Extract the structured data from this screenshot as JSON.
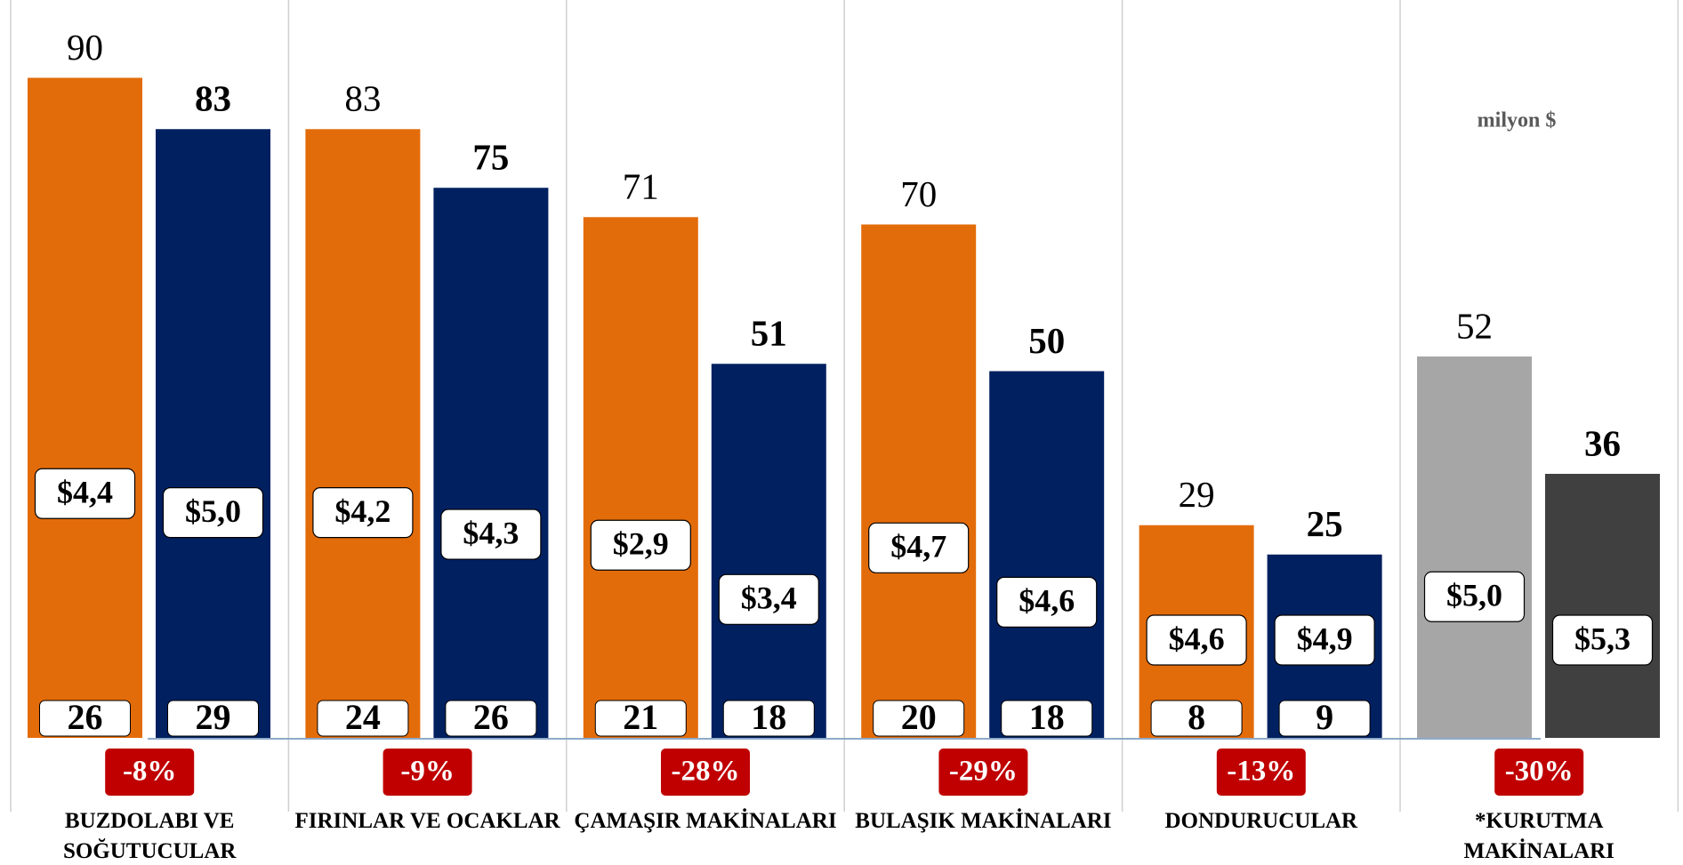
{
  "chart_data": {
    "type": "bar",
    "unit": "milyon $",
    "categories": [
      "BUZDOLABI VE\nSOĞUTUCULAR",
      "FIRINLAR VE OCAKLAR",
      "ÇAMAŞIR MAKİNALARI",
      "BULAŞIK MAKİNALARI",
      "DONDURUCULAR",
      "*KURUTMA\nMAKİNALARI"
    ],
    "ylim": [
      0,
      100
    ],
    "series": [
      {
        "colors": [
          "#e36c0a",
          "#e36c0a",
          "#e36c0a",
          "#e36c0a",
          "#e36c0a",
          "#a6a6a6"
        ],
        "values": [
          90,
          83,
          71,
          70,
          29,
          52
        ],
        "price_labels": [
          "$4,4",
          "$4,2",
          "$2,9",
          "$4,7",
          "$4,6",
          "$5,0"
        ],
        "counts": [
          26,
          24,
          21,
          20,
          8,
          null
        ]
      },
      {
        "colors": [
          "#002060",
          "#002060",
          "#002060",
          "#002060",
          "#002060",
          "#404040"
        ],
        "values": [
          83,
          75,
          51,
          50,
          25,
          36
        ],
        "price_labels": [
          "$5,0",
          "$4,3",
          "$3,4",
          "$4,6",
          "$4,9",
          "$5,3"
        ],
        "counts": [
          29,
          26,
          18,
          18,
          9,
          null
        ]
      }
    ],
    "change_labels": [
      "-8%",
      "-9%",
      "-28%",
      "-29%",
      "-13%",
      "-30%"
    ]
  }
}
